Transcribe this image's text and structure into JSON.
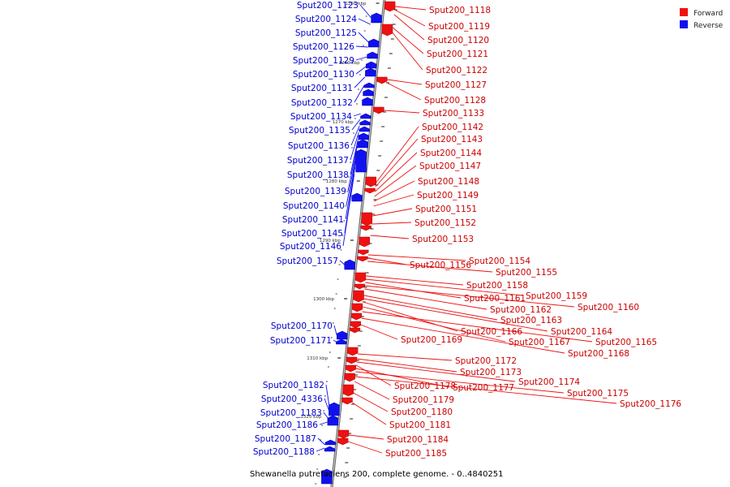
{
  "caption": "Shewanella putrefaciens 200, complete genome. - 0..4840251",
  "legend": {
    "forward": {
      "label": "Forward",
      "color": "#ee1111"
    },
    "reverse": {
      "label": "Reverse",
      "color": "#1111ee"
    }
  },
  "ticks": [
    "1250 kbp",
    "1260 kbp",
    "1270 kbp",
    "1280 kbp",
    "1290 kbp",
    "1300 kbp",
    "1310 kbp",
    "1320 kbp"
  ],
  "reverse_genes": [
    "Sput200_1123",
    "Sput200_1124",
    "Sput200_1125",
    "Sput200_1126",
    "Sput200_1129",
    "Sput200_1130",
    "Sput200_1131",
    "Sput200_1132",
    "Sput200_1134",
    "Sput200_1135",
    "Sput200_1136",
    "Sput200_1137",
    "Sput200_1138",
    "Sput200_1139",
    "Sput200_1140",
    "Sput200_1141",
    "Sput200_1145",
    "Sput200_1146",
    "Sput200_1157",
    "Sput200_1170",
    "Sput200_1171",
    "Sput200_1182",
    "Sput200_4336",
    "Sput200_1183",
    "Sput200_1186",
    "Sput200_1187",
    "Sput200_1188"
  ],
  "forward_genes": [
    "Sput200_1118",
    "Sput200_1119",
    "Sput200_1120",
    "Sput200_1121",
    "Sput200_1122",
    "Sput200_1127",
    "Sput200_1128",
    "Sput200_1133",
    "Sput200_1142",
    "Sput200_1143",
    "Sput200_1144",
    "Sput200_1147",
    "Sput200_1148",
    "Sput200_1149",
    "Sput200_1151",
    "Sput200_1152",
    "Sput200_1153",
    "Sput200_1154",
    "Sput200_1156",
    "Sput200_1155",
    "Sput200_1158",
    "Sput200_1159",
    "Sput200_1161",
    "Sput200_1160",
    "Sput200_1162",
    "Sput200_1163",
    "Sput200_1166",
    "Sput200_1164",
    "Sput200_1167",
    "Sput200_1165",
    "Sput200_1169",
    "Sput200_1168",
    "Sput200_1172",
    "Sput200_1173",
    "Sput200_1174",
    "Sput200_1178",
    "Sput200_1177",
    "Sput200_1175",
    "Sput200_1176",
    "Sput200_1179",
    "Sput200_1180",
    "Sput200_1181",
    "Sput200_1184",
    "Sput200_1185"
  ]
}
